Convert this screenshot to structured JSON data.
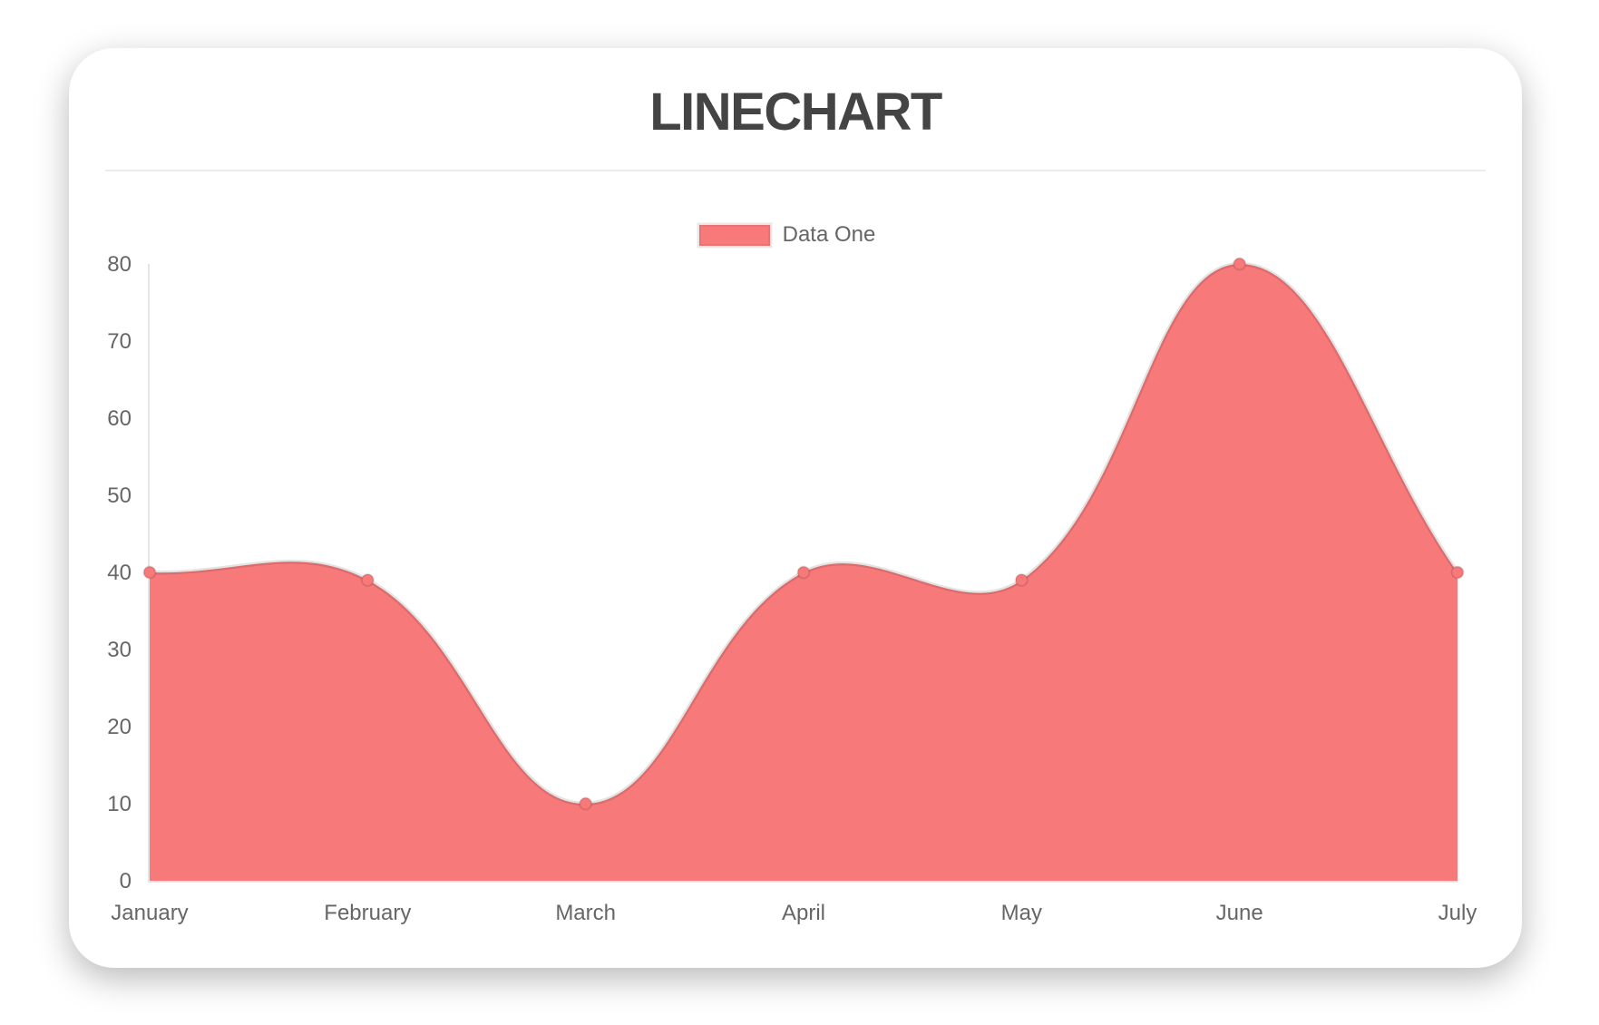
{
  "page": {
    "background": "#ffffff"
  },
  "chart_data": {
    "type": "line",
    "title": "LINECHART",
    "categories": [
      "January",
      "February",
      "March",
      "April",
      "May",
      "June",
      "July"
    ],
    "series": [
      {
        "name": "Data One",
        "values": [
          40,
          39,
          10,
          40,
          39,
          80,
          40
        ],
        "fill_color": "#f87979",
        "point_color": "#f87979",
        "line_color": "rgba(0,0,0,0.11)"
      }
    ],
    "ylim": [
      0,
      80
    ],
    "yticks": [
      0,
      10,
      20,
      30,
      40,
      50,
      60,
      70,
      80
    ],
    "grid": false,
    "legend_position": "top",
    "smooth": true,
    "filled": true,
    "axis_color": "rgba(0,0,0,0.10)",
    "label_color": "#666666",
    "title_color": "#444444"
  }
}
